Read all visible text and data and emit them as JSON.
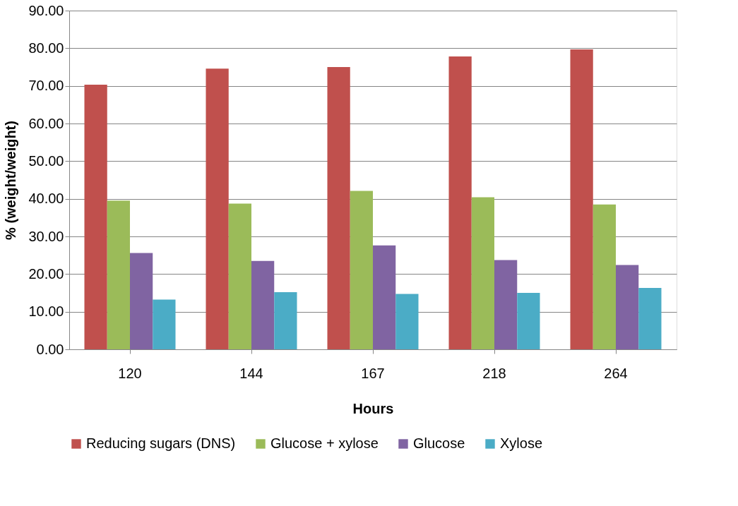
{
  "chart_data": {
    "type": "bar",
    "xlabel": "Hours",
    "ylabel": "% (weight/weight)",
    "categories": [
      "120",
      "144",
      "167",
      "218",
      "264"
    ],
    "series": [
      {
        "name": "Reducing sugars (DNS)",
        "color": "#c0504d",
        "values": [
          70.3,
          74.6,
          75.0,
          77.8,
          79.7
        ]
      },
      {
        "name": "Glucose + xylose",
        "color": "#9bbb59",
        "values": [
          39.5,
          38.7,
          42.1,
          40.4,
          38.5
        ]
      },
      {
        "name": "Glucose",
        "color": "#8064a2",
        "values": [
          25.6,
          23.5,
          27.6,
          23.7,
          22.4
        ]
      },
      {
        "name": "Xylose",
        "color": "#4bacc6",
        "values": [
          13.2,
          15.2,
          14.7,
          15.0,
          16.3
        ]
      }
    ],
    "ylim": [
      0,
      90
    ],
    "yticks": [
      {
        "value": 0,
        "label": "0.00"
      },
      {
        "value": 10,
        "label": "10.00"
      },
      {
        "value": 20,
        "label": "20.00"
      },
      {
        "value": 30,
        "label": "30.00"
      },
      {
        "value": 40,
        "label": "40.00"
      },
      {
        "value": 50,
        "label": "50.00"
      },
      {
        "value": 60,
        "label": "60.00"
      },
      {
        "value": 70,
        "label": "70.00"
      },
      {
        "value": 80,
        "label": "80.00"
      },
      {
        "value": 90,
        "label": "90.00"
      }
    ],
    "grid": "y",
    "legend": "bottom"
  }
}
